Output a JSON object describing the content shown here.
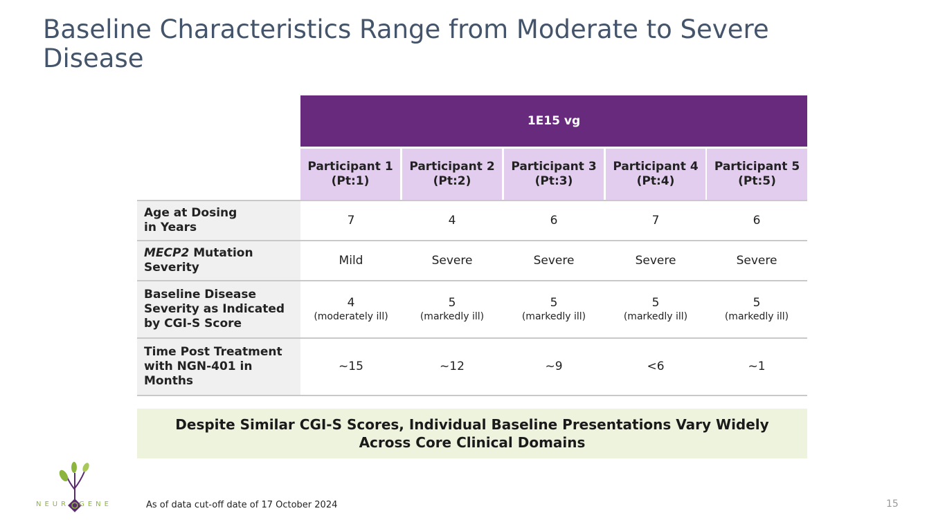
{
  "slide": {
    "title": "Baseline Characteristics Range from Moderate to Severe Disease",
    "page_number": "15",
    "footnote": "As of data cut-off date of 17 October 2024"
  },
  "logo": {
    "name_left": "NEUR",
    "name_right": "GENE"
  },
  "table": {
    "dose_header": "1E15 vg",
    "participants": [
      {
        "name": "Participant 1",
        "code": "(Pt:1)"
      },
      {
        "name": "Participant 2",
        "code": "(Pt:2)"
      },
      {
        "name": "Participant 3",
        "code": "(Pt:3)"
      },
      {
        "name": "Participant 4",
        "code": "(Pt:4)"
      },
      {
        "name": "Participant 5",
        "code": "(Pt:5)"
      }
    ],
    "rows": {
      "age": {
        "label_line1": "Age at Dosing",
        "label_line2": "in Years",
        "values": [
          "7",
          "4",
          "6",
          "7",
          "6"
        ]
      },
      "mecp2": {
        "label_italic": "MECP2",
        "label_rest": " Mutation",
        "label_line2": "Severity",
        "values": [
          "Mild",
          "Severe",
          "Severe",
          "Severe",
          "Severe"
        ]
      },
      "cgis": {
        "label_line1": "Baseline Disease",
        "label_line2": "Severity as Indicated",
        "label_line3": "by CGI-S Score",
        "values": [
          "4",
          "5",
          "5",
          "5",
          "5"
        ],
        "subs": [
          "(moderately ill)",
          "(markedly ill)",
          "(markedly ill)",
          "(markedly ill)",
          "(markedly ill)"
        ]
      },
      "time": {
        "label_line1": "Time Post Treatment",
        "label_line2": "with NGN-401 in",
        "label_line3": "Months",
        "values": [
          "~15",
          "~12",
          "~9",
          "<6",
          "~1"
        ]
      }
    }
  },
  "callout": {
    "line1": "Despite Similar CGI-S Scores, Individual Baseline Presentations Vary Widely",
    "line2": "Across Core Clinical Domains"
  }
}
